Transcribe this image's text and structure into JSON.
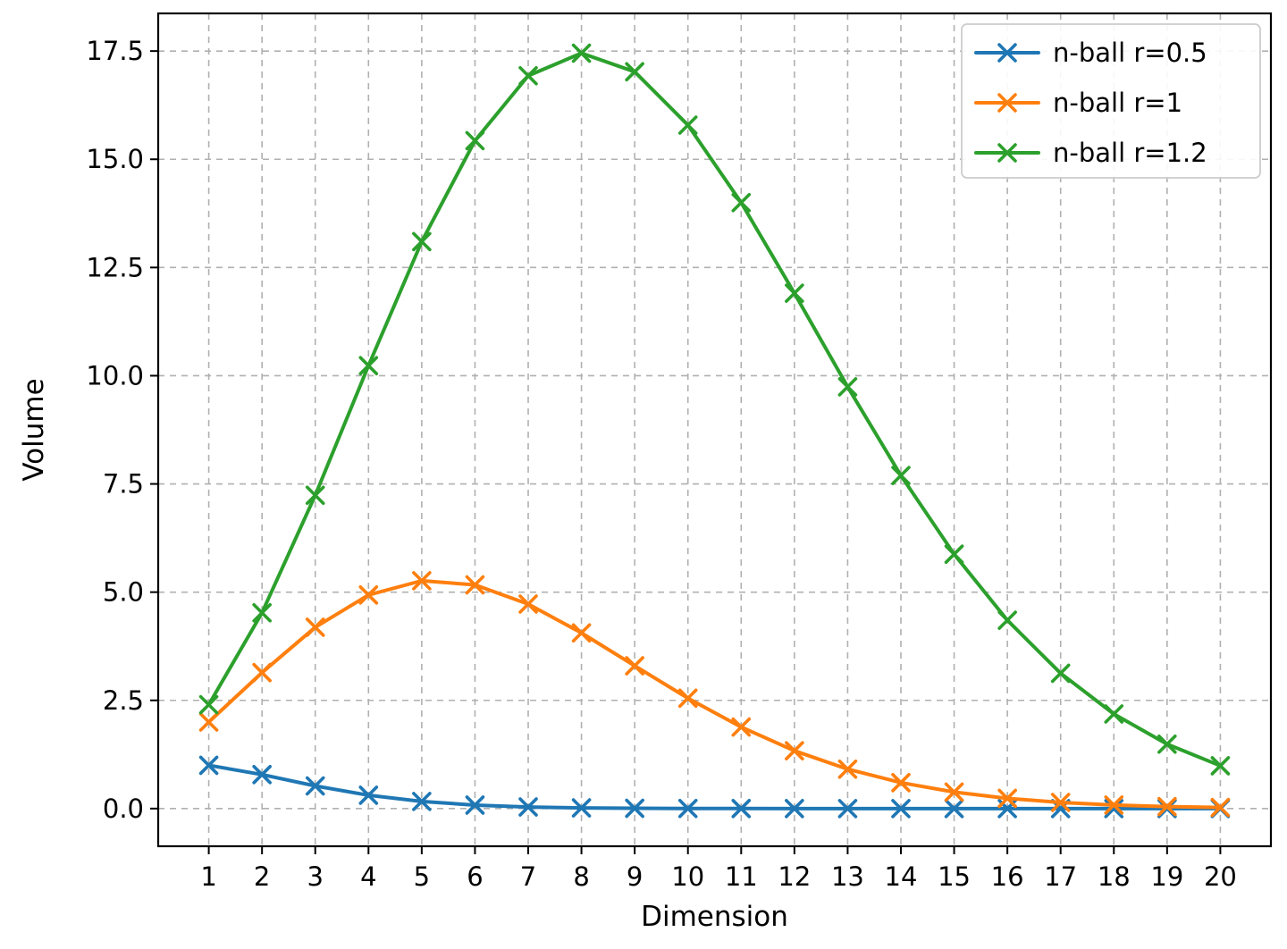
{
  "figure": {
    "background": "#ffffff",
    "plot_background": "#ffffff",
    "spine_color": "#000000",
    "grid_color": "#b0b0b0",
    "legend_border_color": "#cccccc"
  },
  "chart_data": {
    "type": "line",
    "title": "",
    "xlabel": "Dimension",
    "ylabel": "Volume",
    "x": [
      1,
      2,
      3,
      4,
      5,
      6,
      7,
      8,
      9,
      10,
      11,
      12,
      13,
      14,
      15,
      16,
      17,
      18,
      19,
      20
    ],
    "series": [
      {
        "name": "n-ball r=0.5",
        "color": "#1f77b4",
        "marker": "x",
        "values": [
          1.0,
          0.7854,
          0.5236,
          0.3084,
          0.1645,
          0.0807,
          0.0369,
          0.0159,
          0.0064,
          0.0025,
          0.000922,
          0.000326,
          0.000111,
          3.66e-05,
          1.17e-05,
          3.6e-06,
          1.1e-06,
          3e-07,
          1e-07,
          0.0
        ]
      },
      {
        "name": "n-ball r=1",
        "color": "#ff7f0e",
        "marker": "x",
        "values": [
          2.0,
          3.1416,
          4.1888,
          4.9348,
          5.2638,
          5.1677,
          4.7248,
          4.0587,
          3.2985,
          2.5502,
          1.8841,
          1.3353,
          0.9106,
          0.5993,
          0.3814,
          0.2353,
          0.1409,
          0.0821,
          0.0466,
          0.0258
        ]
      },
      {
        "name": "n-ball r=1.2",
        "color": "#2ca02c",
        "marker": "x",
        "values": [
          2.4,
          4.5239,
          7.2382,
          10.2328,
          13.0981,
          15.4307,
          16.9298,
          17.4517,
          17.0216,
          15.7901,
          13.999,
          11.9056,
          9.7427,
          7.6944,
          5.8766,
          4.3511,
          3.1262,
          2.1853,
          1.4887,
          0.989
        ]
      }
    ],
    "xlim": [
      0.05,
      20.95
    ],
    "ylim": [
      -0.87,
      18.37
    ],
    "xticks": [
      1,
      2,
      3,
      4,
      5,
      6,
      7,
      8,
      9,
      10,
      11,
      12,
      13,
      14,
      15,
      16,
      17,
      18,
      19,
      20
    ],
    "xtick_labels": [
      "1",
      "2",
      "3",
      "4",
      "5",
      "6",
      "7",
      "8",
      "9",
      "10",
      "11",
      "12",
      "13",
      "14",
      "15",
      "16",
      "17",
      "18",
      "19",
      "20"
    ],
    "yticks": [
      0.0,
      2.5,
      5.0,
      7.5,
      10.0,
      12.5,
      15.0,
      17.5
    ],
    "ytick_labels": [
      "0.0",
      "2.5",
      "5.0",
      "7.5",
      "10.0",
      "12.5",
      "15.0",
      "17.5"
    ],
    "grid": true,
    "grid_style": "dashed",
    "legend_position": "upper right",
    "legend_entries": [
      "n-ball r=0.5",
      "n-ball r=1",
      "n-ball r=1.2"
    ]
  }
}
